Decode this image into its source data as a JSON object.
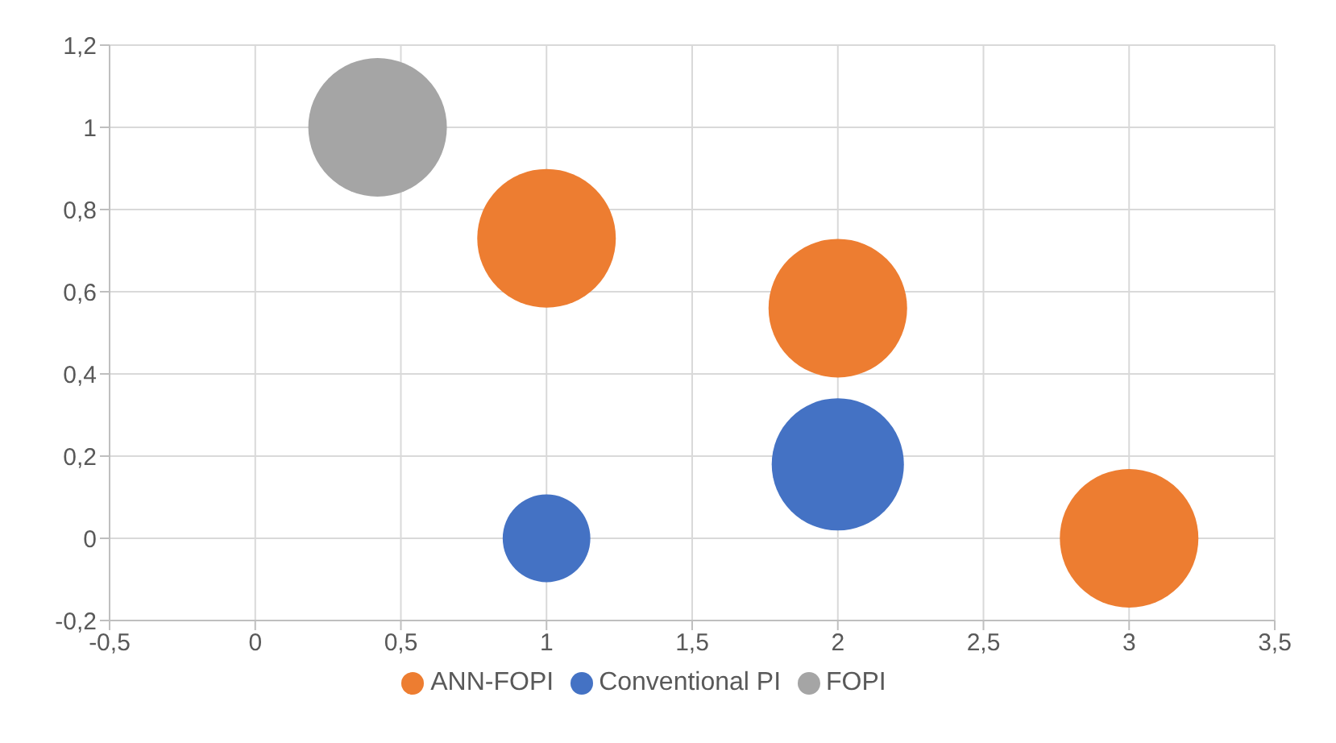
{
  "chart_data": {
    "type": "bubble",
    "xlim": [
      -0.5,
      3.5
    ],
    "xticks": [
      {
        "value": -0.5,
        "label": "-0,5"
      },
      0,
      {
        "value": 0.5,
        "label": "0,5"
      },
      1,
      {
        "value": 1.5,
        "label": "1,5"
      },
      2,
      {
        "value": 2.5,
        "label": "2,5"
      },
      3,
      {
        "value": 3.5,
        "label": "3,5"
      }
    ],
    "ylim": [
      -0.2,
      1.2
    ],
    "yticks": [
      {
        "value": -0.2,
        "label": "-0,2"
      },
      0,
      {
        "value": 0.2,
        "label": "0,2"
      },
      {
        "value": 0.4,
        "label": "0,4"
      },
      {
        "value": 0.6,
        "label": "0,6"
      },
      {
        "value": 0.8,
        "label": "0,8"
      },
      1,
      {
        "value": 1.2,
        "label": "1,2"
      }
    ],
    "grid": true,
    "legend": "bottom",
    "series": [
      {
        "name": "Conventional PI",
        "color": "#4472c4",
        "x": [
          1,
          2
        ],
        "values": [
          0,
          0.18
        ],
        "sizes": [
          0.4,
          0.91
        ]
      },
      {
        "name": "ANN-FOPI",
        "color": "#ed7d31",
        "x": [
          1,
          2,
          3
        ],
        "values": [
          0.73,
          0.56,
          0
        ],
        "sizes": [
          1,
          1,
          1
        ]
      },
      {
        "name": "FOPI",
        "color": "#a5a5a5",
        "x": [
          0.42
        ],
        "values": [
          1
        ],
        "sizes": [
          1
        ]
      }
    ]
  }
}
